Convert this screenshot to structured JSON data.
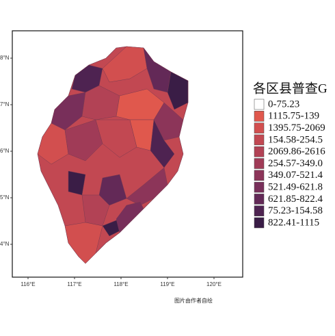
{
  "map": {
    "legend": {
      "title": "各区县普查G",
      "items": [
        {
          "label": "0-75.23",
          "color": "#ffffff"
        },
        {
          "label": "1115.75-139",
          "color": "#e0584d"
        },
        {
          "label": "1395.75-2069",
          "color": "#d24f4f"
        },
        {
          "label": "154.58-254.5",
          "color": "#c24852"
        },
        {
          "label": "2069.86-2616",
          "color": "#b24255"
        },
        {
          "label": "254.57-349.0",
          "color": "#a03b57"
        },
        {
          "label": "349.07-521.4",
          "color": "#8c3559"
        },
        {
          "label": "521.49-621.8",
          "color": "#782f5a"
        },
        {
          "label": "621.85-822.4",
          "color": "#632957"
        },
        {
          "label": "75.23-154.58",
          "color": "#4e2351"
        },
        {
          "label": "822.41-1115",
          "color": "#3a1d46"
        }
      ]
    },
    "y_axis": [
      "8°N",
      "7°N",
      "6°N",
      "5°N",
      "4°N"
    ],
    "x_axis": [
      "116°E",
      "117°E",
      "118°E",
      "119°E",
      "120°E"
    ],
    "caption": "图片由作者自绘"
  }
}
